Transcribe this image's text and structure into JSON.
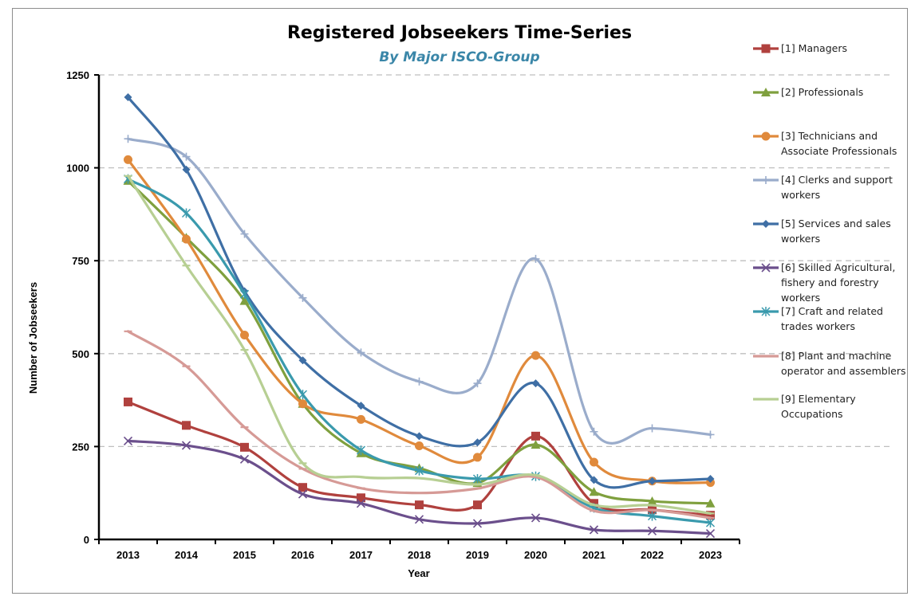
{
  "chart_data": {
    "type": "line",
    "title": "Registered Jobseekers Time-Series",
    "subtitle": "By Major ISCO-Group",
    "xlabel": "Year",
    "ylabel": "Number of Jobseekers",
    "x": [
      "2013",
      "2014",
      "2015",
      "2016",
      "2017",
      "2018",
      "2019",
      "2020",
      "2021",
      "2022",
      "2023"
    ],
    "ylim": [
      0,
      1250
    ],
    "yticks": [
      0,
      250,
      500,
      750,
      1000,
      1250
    ],
    "grid": "horizontal dashed",
    "legend_position": "right",
    "smoothed": true,
    "series": [
      {
        "name_lines": [
          "[1] Managers"
        ],
        "color": "#b0413e",
        "marker": "square",
        "values": [
          370,
          307,
          248,
          140,
          112,
          93,
          93,
          278,
          97,
          80,
          65
        ]
      },
      {
        "name_lines": [
          "[2] Professionals"
        ],
        "color": "#7fa03e",
        "marker": "triangle",
        "values": [
          965,
          812,
          642,
          365,
          232,
          192,
          152,
          255,
          128,
          103,
          97
        ]
      },
      {
        "name_lines": [
          "[3] Technicians and",
          "Associate Professionals"
        ],
        "color": "#e08a3c",
        "marker": "circle",
        "values": [
          1022,
          808,
          550,
          365,
          323,
          252,
          221,
          495,
          208,
          157,
          153
        ]
      },
      {
        "name_lines": [
          "[4] Clerks and support",
          "workers"
        ],
        "color": "#9aaccb",
        "marker": "plus",
        "values": [
          1078,
          1030,
          822,
          650,
          503,
          425,
          420,
          755,
          290,
          299,
          282
        ]
      },
      {
        "name_lines": [
          "[5] Services and sales",
          "workers"
        ],
        "color": "#3f6fa5",
        "marker": "diamond",
        "values": [
          1190,
          995,
          668,
          482,
          360,
          278,
          261,
          420,
          160,
          157,
          163
        ]
      },
      {
        "name_lines": [
          "[6] Skilled Agricultural,",
          "fishery and forestry",
          "workers"
        ],
        "color": "#6b4f8c",
        "marker": "x",
        "values": [
          265,
          253,
          216,
          122,
          97,
          54,
          43,
          58,
          26,
          23,
          16
        ]
      },
      {
        "name_lines": [
          "[7] Craft and related",
          "trades workers"
        ],
        "color": "#3a9aad",
        "marker": "star",
        "values": [
          970,
          878,
          660,
          390,
          240,
          185,
          163,
          170,
          85,
          63,
          45
        ]
      },
      {
        "name_lines": [
          "[8] Plant and machine",
          "operator and assemblers"
        ],
        "color": "#d69a96",
        "marker": "dash",
        "values": [
          560,
          466,
          302,
          190,
          138,
          125,
          137,
          168,
          77,
          79,
          58
        ]
      },
      {
        "name_lines": [
          "[9] Elementary",
          "Occupations"
        ],
        "color": "#b7cf93",
        "marker": "dash",
        "values": [
          978,
          737,
          510,
          205,
          168,
          165,
          148,
          173,
          93,
          92,
          70
        ]
      }
    ],
    "colors": {
      "subtitle": "#3a86a8",
      "grid": "#bfbfbf",
      "axis": "#000000"
    }
  }
}
